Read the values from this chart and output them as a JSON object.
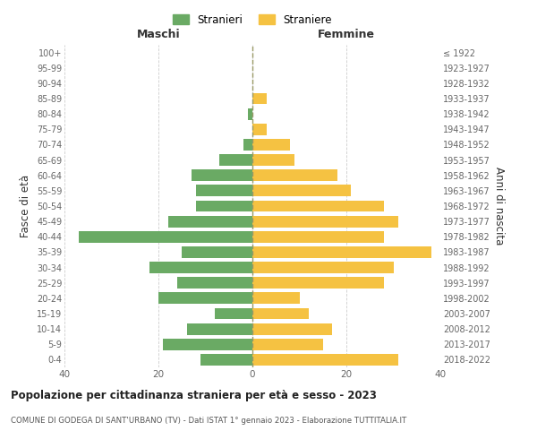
{
  "age_groups": [
    "0-4",
    "5-9",
    "10-14",
    "15-19",
    "20-24",
    "25-29",
    "30-34",
    "35-39",
    "40-44",
    "45-49",
    "50-54",
    "55-59",
    "60-64",
    "65-69",
    "70-74",
    "75-79",
    "80-84",
    "85-89",
    "90-94",
    "95-99",
    "100+"
  ],
  "birth_years": [
    "2018-2022",
    "2013-2017",
    "2008-2012",
    "2003-2007",
    "1998-2002",
    "1993-1997",
    "1988-1992",
    "1983-1987",
    "1978-1982",
    "1973-1977",
    "1968-1972",
    "1963-1967",
    "1958-1962",
    "1953-1957",
    "1948-1952",
    "1943-1947",
    "1938-1942",
    "1933-1937",
    "1928-1932",
    "1923-1927",
    "≤ 1922"
  ],
  "males": [
    11,
    19,
    14,
    8,
    20,
    16,
    22,
    15,
    37,
    18,
    12,
    12,
    13,
    7,
    2,
    0,
    1,
    0,
    0,
    0,
    0
  ],
  "females": [
    31,
    15,
    17,
    12,
    10,
    28,
    30,
    38,
    28,
    31,
    28,
    21,
    18,
    9,
    8,
    3,
    0,
    3,
    0,
    0,
    0
  ],
  "male_color": "#6aaa64",
  "female_color": "#f5c242",
  "title": "Popolazione per cittadinanza straniera per età e sesso - 2023",
  "subtitle": "COMUNE DI GODEGA DI SANT'URBANO (TV) - Dati ISTAT 1° gennaio 2023 - Elaborazione TUTTITALIA.IT",
  "ylabel_left": "Fasce di età",
  "ylabel_right": "Anni di nascita",
  "xlabel_left": "Maschi",
  "xlabel_right": "Femmine",
  "legend_male": "Stranieri",
  "legend_female": "Straniere",
  "xlim": 40,
  "background_color": "#ffffff",
  "grid_color": "#cccccc"
}
